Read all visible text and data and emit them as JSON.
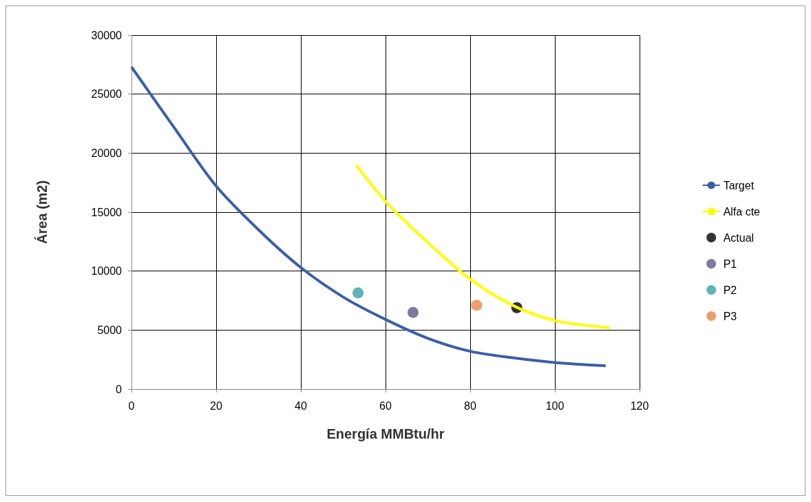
{
  "chart_data": {
    "type": "line",
    "xlabel": "Energía MMBtu/hr",
    "ylabel": "Área (m2)",
    "xlim": [
      0,
      120
    ],
    "xticks": [
      0,
      20,
      40,
      60,
      80,
      100,
      120
    ],
    "ylim": [
      0,
      30000
    ],
    "yticks": [
      0,
      5000,
      10000,
      15000,
      20000,
      25000,
      30000
    ],
    "grid": true,
    "legend": "right",
    "series": [
      {
        "name": "Target",
        "color": "#3a5ea8",
        "marker": "none",
        "x": [
          0,
          10,
          20,
          30,
          40,
          50,
          60,
          70,
          80,
          90,
          100,
          112
        ],
        "values": [
          27300,
          22200,
          17200,
          13500,
          10300,
          7800,
          5900,
          4300,
          3200,
          2650,
          2250,
          1970
        ]
      },
      {
        "name": "Alfa cte",
        "color": "#ffff00",
        "marker": "none",
        "x": [
          53,
          60,
          70,
          80,
          90,
          100,
          113
        ],
        "values": [
          19000,
          15900,
          12400,
          9300,
          7100,
          5800,
          5200
        ]
      },
      {
        "name": "Actual",
        "type": "scatter",
        "color": "#000000",
        "marker": "circle",
        "x": [
          91
        ],
        "values": [
          6900
        ]
      },
      {
        "name": "P1",
        "type": "scatter",
        "color": "#5a5a8c",
        "marker": "circle",
        "x": [
          66.5
        ],
        "values": [
          6500
        ]
      },
      {
        "name": "P2",
        "type": "scatter",
        "color": "#3aa0a8",
        "marker": "circle",
        "x": [
          53.5
        ],
        "values": [
          8150
        ]
      },
      {
        "name": "P3",
        "type": "scatter",
        "color": "#e8844a",
        "marker": "circle",
        "x": [
          81.5
        ],
        "values": [
          7100
        ]
      }
    ]
  }
}
